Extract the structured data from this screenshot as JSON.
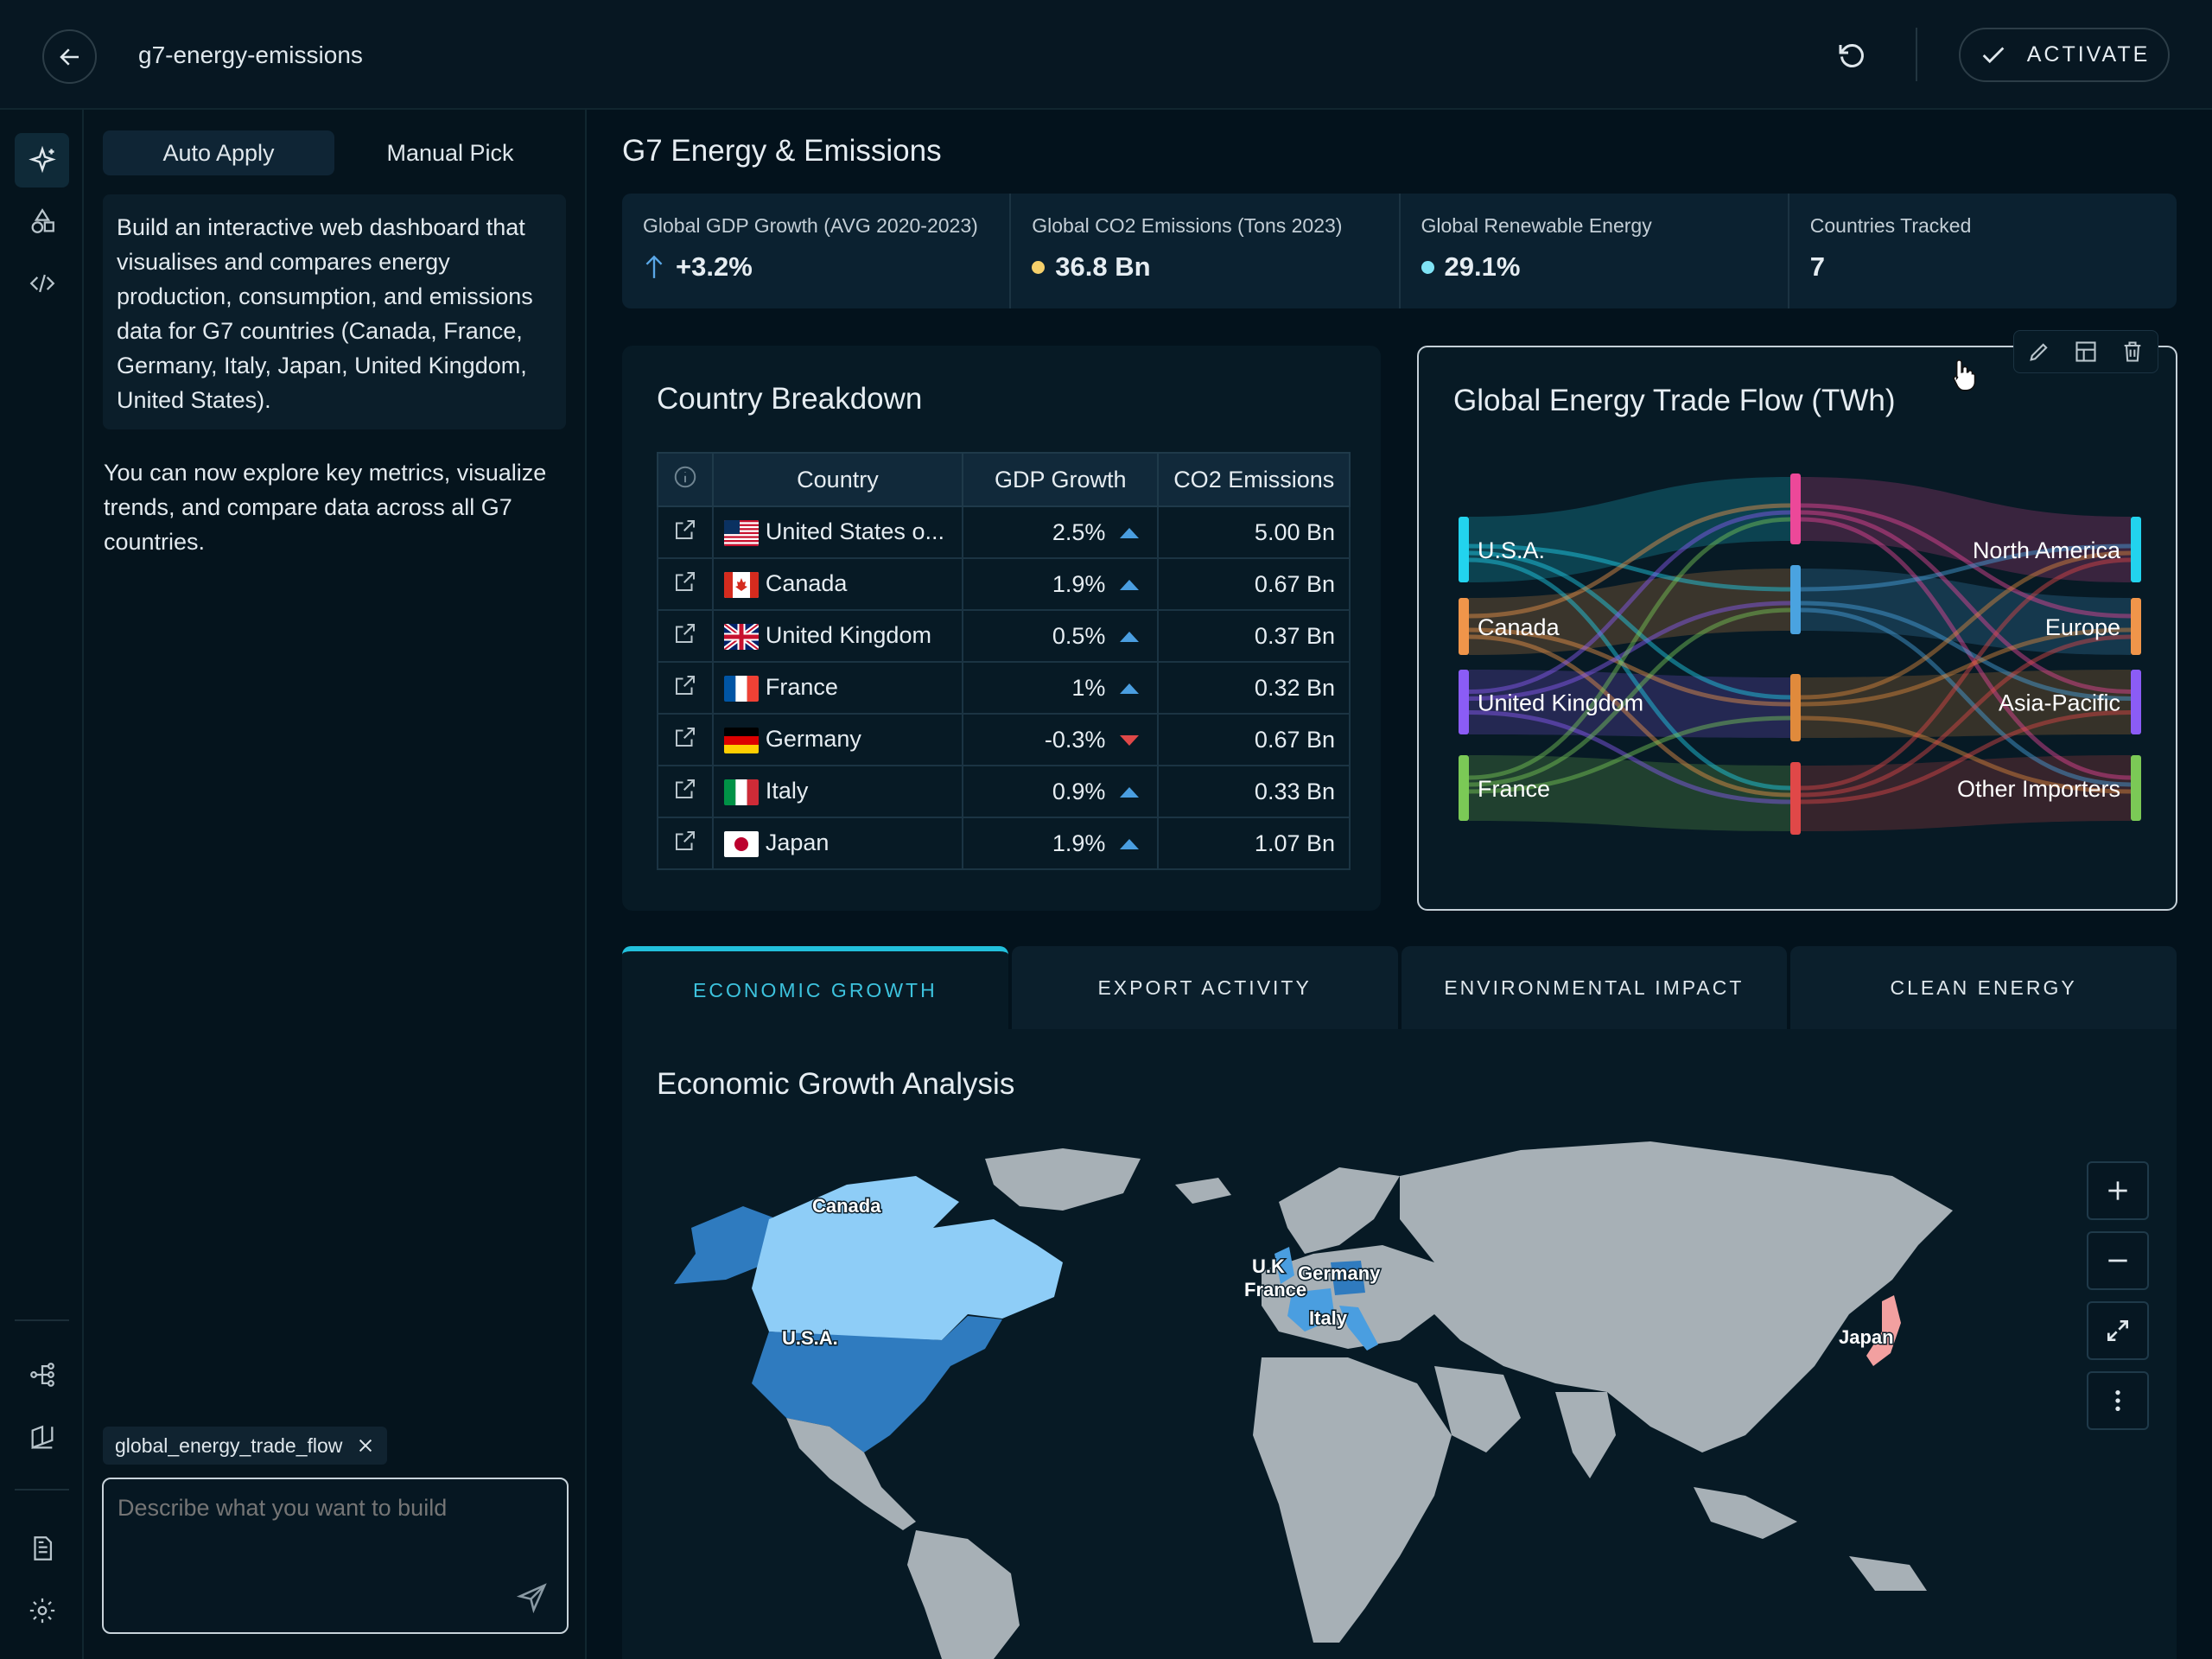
{
  "header": {
    "title": "g7-energy-emissions",
    "activate_label": "ACTIVATE"
  },
  "rail": {
    "icons": [
      "sparkle-icon",
      "shapes-icon",
      "code-icon",
      "flow-icon",
      "book-icon",
      "document-icon",
      "gear-icon"
    ]
  },
  "left_panel": {
    "tabs": [
      "Auto Apply",
      "Manual Pick"
    ],
    "prompt": "Build an interactive web dashboard that visualises and compares energy production, consumption, and emissions data for G7 countries (Canada, France, Germany, Italy, Japan, United Kingdom, United States).",
    "response": "You can now explore key metrics, visualize trends, and compare data across all G7 countries.",
    "chip": "global_energy_trade_flow",
    "composer_placeholder": "Describe what you want to build"
  },
  "main": {
    "title": "G7 Energy & Emissions",
    "kpis": [
      {
        "label": "Global GDP Growth (AVG 2020-2023)",
        "value": "+3.2%",
        "marker": "arrow-up-icon",
        "color": "#5aa7e6"
      },
      {
        "label": "Global CO2 Emissions (Tons 2023)",
        "value": "36.8 Bn",
        "marker": "dot",
        "color": "#f5d06b"
      },
      {
        "label": "Global Renewable Energy",
        "value": "29.1%",
        "marker": "dot",
        "color": "#7fe3f5"
      },
      {
        "label": "Countries Tracked",
        "value": "7",
        "marker": "none",
        "color": ""
      }
    ],
    "breakdown": {
      "title": "Country Breakdown",
      "headers": [
        "Country",
        "GDP Growth",
        "CO2 Emissions"
      ],
      "rows": [
        {
          "country": "United States o...",
          "flag": "us",
          "gdp": "2.5%",
          "trend": "up",
          "co2": "5.00 Bn"
        },
        {
          "country": "Canada",
          "flag": "ca",
          "gdp": "1.9%",
          "trend": "up",
          "co2": "0.67 Bn"
        },
        {
          "country": "United Kingdom",
          "flag": "uk",
          "gdp": "0.5%",
          "trend": "up",
          "co2": "0.37 Bn"
        },
        {
          "country": "France",
          "flag": "fr",
          "gdp": "1%",
          "trend": "up",
          "co2": "0.32 Bn"
        },
        {
          "country": "Germany",
          "flag": "de",
          "gdp": "-0.3%",
          "trend": "down",
          "co2": "0.67 Bn"
        },
        {
          "country": "Italy",
          "flag": "it",
          "gdp": "0.9%",
          "trend": "up",
          "co2": "0.33 Bn"
        },
        {
          "country": "Japan",
          "flag": "jp",
          "gdp": "1.9%",
          "trend": "up",
          "co2": "1.07 Bn"
        }
      ]
    },
    "trade_flow": {
      "title": "Global Energy Trade Flow (TWh)",
      "sources": [
        {
          "name": "U.S.A.",
          "color": "#22d3ee"
        },
        {
          "name": "Canada",
          "color": "#f0954a"
        },
        {
          "name": "United Kingdom",
          "color": "#8b5cf6"
        },
        {
          "name": "France",
          "color": "#7bc956"
        }
      ],
      "middle_colors": [
        "#ec4899",
        "#4aa3e0",
        "#e08a3c",
        "#e04848"
      ],
      "targets": [
        {
          "name": "North America",
          "color": "#22d3ee"
        },
        {
          "name": "Europe",
          "color": "#f0954a"
        },
        {
          "name": "Asia-Pacific",
          "color": "#8b5cf6"
        },
        {
          "name": "Other Importers",
          "color": "#7bc956"
        }
      ]
    },
    "tabs": [
      "ECONOMIC GROWTH",
      "EXPORT ACTIVITY",
      "ENVIRONMENTAL IMPACT",
      "CLEAN ENERGY"
    ],
    "analysis": {
      "title": "Economic Growth Analysis",
      "map_labels": [
        "Canada",
        "U.S.A.",
        "U.K",
        "Germany",
        "France",
        "Italy",
        "Japan"
      ],
      "map_colors": {
        "land": "#a7b0b6",
        "usa": "#2f7bbf",
        "canada": "#8ecdf7",
        "europe": "#4a9ee0",
        "japan": "#f2a0a0"
      }
    }
  }
}
